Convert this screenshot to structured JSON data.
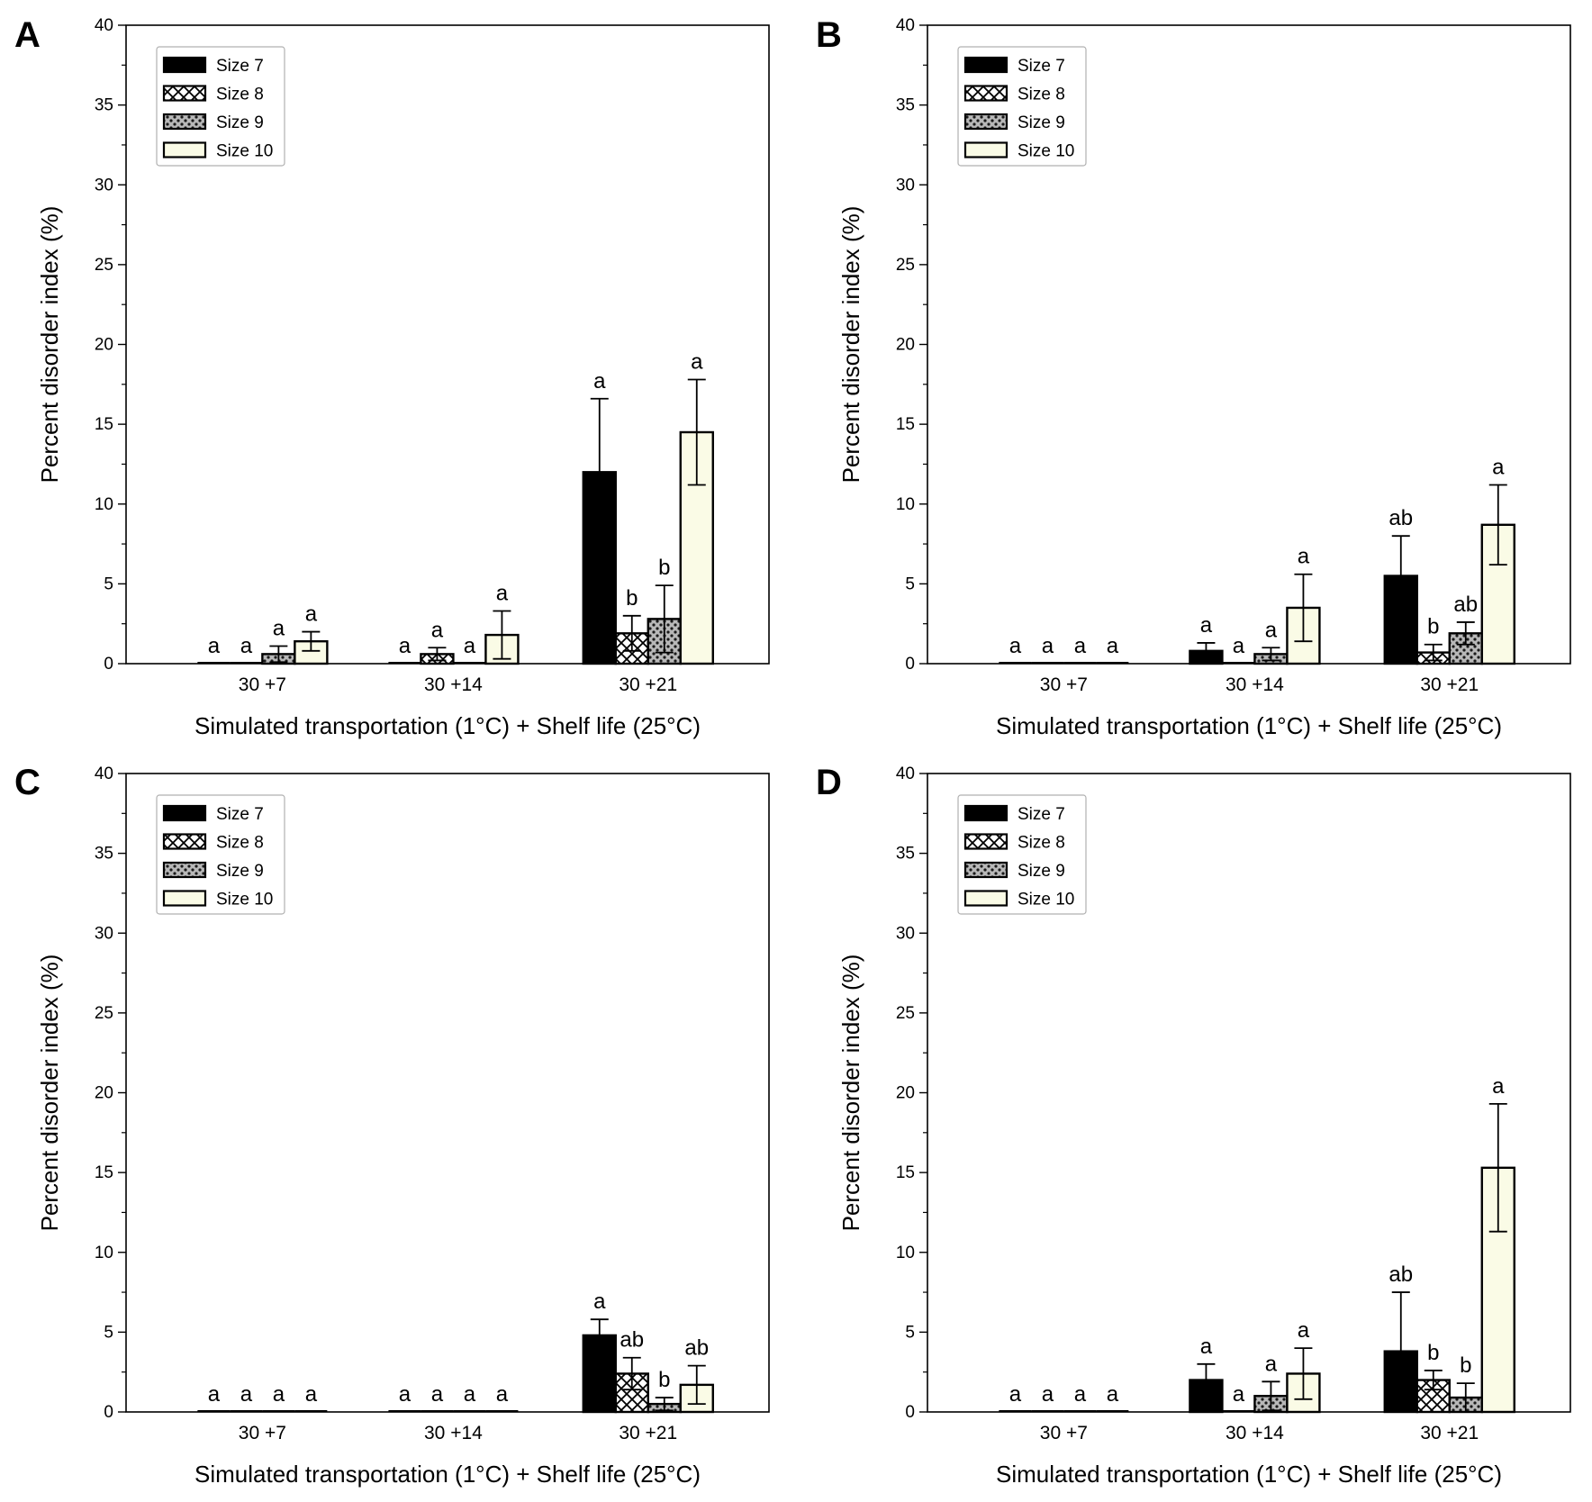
{
  "figure": {
    "legend": [
      {
        "label": "Size 7",
        "fill": "black"
      },
      {
        "label": "Size 8",
        "fill": "crosshatch"
      },
      {
        "label": "Size 9",
        "fill": "dots"
      },
      {
        "label": "Size 10",
        "fill": "cream"
      }
    ],
    "colors": {
      "cream": "#fafbe6",
      "black": "#000000",
      "dot_bg": "#bdbdbd"
    }
  },
  "chart_data": [
    {
      "panel": "A",
      "type": "bar",
      "title": "",
      "xlabel": "Simulated transportation (1°C) + Shelf life (25°C)",
      "ylabel": "Percent disorder index (%)",
      "ylim": [
        0,
        40
      ],
      "yticks": [
        "0",
        "5",
        "10",
        "15",
        "20",
        "25",
        "30",
        "35",
        "40"
      ],
      "categories": [
        "30 +7",
        "30 +14",
        "30 +21"
      ],
      "legend_position": "top-left",
      "series": [
        {
          "name": "Size 7",
          "values": [
            0,
            0,
            12.0
          ],
          "errors": [
            0,
            0,
            4.6
          ],
          "letters": [
            "a",
            "a",
            "a"
          ]
        },
        {
          "name": "Size 8",
          "values": [
            0,
            0.6,
            1.9
          ],
          "errors": [
            0,
            0.4,
            1.1
          ],
          "letters": [
            "a",
            "a",
            "b"
          ]
        },
        {
          "name": "Size 9",
          "values": [
            0.6,
            0,
            2.8
          ],
          "errors": [
            0.5,
            0,
            2.1
          ],
          "letters": [
            "a",
            "a",
            "b"
          ]
        },
        {
          "name": "Size 10",
          "values": [
            1.4,
            1.8,
            14.5
          ],
          "errors": [
            0.6,
            1.5,
            3.3
          ],
          "letters": [
            "a",
            "a",
            "a"
          ]
        }
      ]
    },
    {
      "panel": "B",
      "type": "bar",
      "title": "",
      "xlabel": "Simulated transportation (1°C) + Shelf life (25°C)",
      "ylabel": "Percent disorder index (%)",
      "ylim": [
        0,
        40
      ],
      "yticks": [
        "0",
        "5",
        "10",
        "15",
        "20",
        "25",
        "30",
        "35",
        "40"
      ],
      "categories": [
        "30 +7",
        "30 +14",
        "30 +21"
      ],
      "legend_position": "top-left",
      "series": [
        {
          "name": "Size 7",
          "values": [
            0,
            0.8,
            5.5
          ],
          "errors": [
            0,
            0.5,
            2.5
          ],
          "letters": [
            "a",
            "a",
            "ab"
          ]
        },
        {
          "name": "Size 8",
          "values": [
            0,
            0,
            0.7
          ],
          "errors": [
            0,
            0,
            0.5
          ],
          "letters": [
            "a",
            "a",
            "b"
          ]
        },
        {
          "name": "Size 9",
          "values": [
            0,
            0.6,
            1.9
          ],
          "errors": [
            0,
            0.4,
            0.7
          ],
          "letters": [
            "a",
            "a",
            "ab"
          ]
        },
        {
          "name": "Size 10",
          "values": [
            0,
            3.5,
            8.7
          ],
          "errors": [
            0,
            2.1,
            2.5
          ],
          "letters": [
            "a",
            "a",
            "a"
          ]
        }
      ]
    },
    {
      "panel": "C",
      "type": "bar",
      "title": "",
      "xlabel": "Simulated transportation (1°C) + Shelf life (25°C)",
      "ylabel": "Percent disorder index (%)",
      "ylim": [
        0,
        40
      ],
      "yticks": [
        "0",
        "5",
        "10",
        "15",
        "20",
        "25",
        "30",
        "35",
        "40"
      ],
      "categories": [
        "30 +7",
        "30 +14",
        "30 +21"
      ],
      "legend_position": "top-left",
      "series": [
        {
          "name": "Size 7",
          "values": [
            0,
            0,
            4.8
          ],
          "errors": [
            0,
            0,
            1.0
          ],
          "letters": [
            "a",
            "a",
            "a"
          ]
        },
        {
          "name": "Size 8",
          "values": [
            0,
            0,
            2.4
          ],
          "errors": [
            0,
            0,
            1.0
          ],
          "letters": [
            "a",
            "a",
            "ab"
          ]
        },
        {
          "name": "Size 9",
          "values": [
            0,
            0,
            0.5
          ],
          "errors": [
            0,
            0,
            0.4
          ],
          "letters": [
            "a",
            "a",
            "b"
          ]
        },
        {
          "name": "Size 10",
          "values": [
            0,
            0,
            1.7
          ],
          "errors": [
            0,
            0,
            1.2
          ],
          "letters": [
            "a",
            "a",
            "ab"
          ]
        }
      ]
    },
    {
      "panel": "D",
      "type": "bar",
      "title": "",
      "xlabel": "Simulated transportation (1°C) + Shelf life (25°C)",
      "ylabel": "Percent disorder index (%)",
      "ylim": [
        0,
        40
      ],
      "yticks": [
        "0",
        "5",
        "10",
        "15",
        "20",
        "25",
        "30",
        "35",
        "40"
      ],
      "categories": [
        "30 +7",
        "30 +14",
        "30 +21"
      ],
      "legend_position": "top-left",
      "series": [
        {
          "name": "Size 7",
          "values": [
            0,
            2.0,
            3.8
          ],
          "errors": [
            0,
            1.0,
            3.7
          ],
          "letters": [
            "a",
            "a",
            "ab"
          ]
        },
        {
          "name": "Size 8",
          "values": [
            0,
            0,
            2.0
          ],
          "errors": [
            0,
            0,
            0.6
          ],
          "letters": [
            "a",
            "a",
            "b"
          ]
        },
        {
          "name": "Size 9",
          "values": [
            0,
            1.0,
            0.9
          ],
          "errors": [
            0,
            0.9,
            0.9
          ],
          "letters": [
            "a",
            "a",
            "b"
          ]
        },
        {
          "name": "Size 10",
          "values": [
            0,
            2.4,
            15.3
          ],
          "errors": [
            0,
            1.6,
            4.0
          ],
          "letters": [
            "a",
            "a",
            "a"
          ]
        }
      ]
    }
  ]
}
